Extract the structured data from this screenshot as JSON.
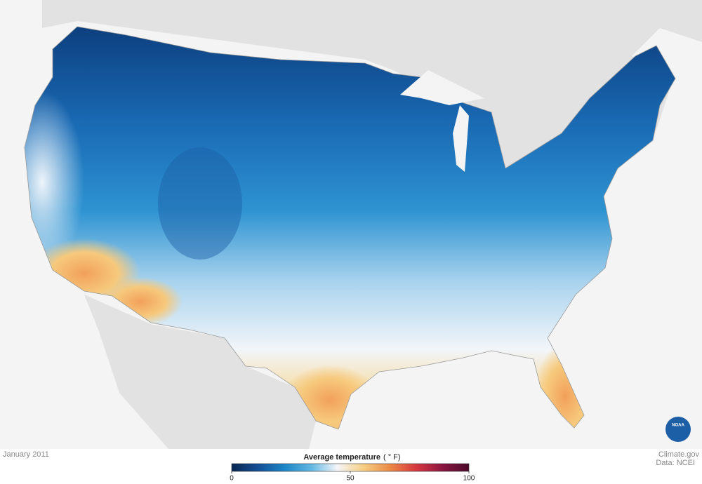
{
  "date": "January 2011",
  "legend": {
    "title": "Average temperature",
    "unit": "( ° F)",
    "ticks": [
      0,
      50,
      100
    ],
    "colors": [
      "#08254f",
      "#124f96",
      "#1a86c8",
      "#5fb6e2",
      "#f4f6fa",
      "#f6cf82",
      "#ec8a45",
      "#d5383f",
      "#8a1440",
      "#4a0a2a"
    ]
  },
  "credits": {
    "site": "Climate.gov",
    "source": "Data: NCEI",
    "logo": "NOAA"
  }
}
